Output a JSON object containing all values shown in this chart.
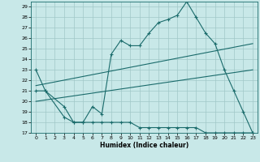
{
  "xlabel": "Humidex (Indice chaleur)",
  "xlim": [
    -0.5,
    23.5
  ],
  "ylim": [
    17,
    29.5
  ],
  "yticks": [
    17,
    18,
    19,
    20,
    21,
    22,
    23,
    24,
    25,
    26,
    27,
    28,
    29
  ],
  "xticks": [
    0,
    1,
    2,
    3,
    4,
    5,
    6,
    7,
    8,
    9,
    10,
    11,
    12,
    13,
    14,
    15,
    16,
    17,
    18,
    19,
    20,
    21,
    22,
    23
  ],
  "bg_color": "#c8e8e8",
  "grid_color": "#a0c8c8",
  "line_color": "#1a6b6b",
  "line1_x": [
    0,
    1,
    3,
    4,
    5,
    6,
    7,
    8,
    9,
    10,
    11,
    12,
    13,
    14,
    15,
    16,
    17,
    18,
    19,
    20,
    21,
    22,
    23
  ],
  "line1_y": [
    23,
    21,
    18.5,
    18,
    18,
    19.5,
    18.8,
    24.5,
    25.8,
    25.3,
    25.3,
    26.5,
    27.5,
    27.8,
    28.2,
    29.5,
    28,
    26.5,
    25.5,
    23,
    21,
    19,
    17
  ],
  "line2_x": [
    0,
    1,
    3,
    4,
    5,
    6,
    7,
    8,
    9,
    10,
    11,
    12,
    13,
    14,
    15,
    16,
    17,
    18,
    19,
    20,
    21,
    22,
    23
  ],
  "line2_y": [
    21,
    21,
    19.5,
    18,
    18,
    18,
    18,
    18,
    18,
    18,
    17.5,
    17.5,
    17.5,
    17.5,
    17.5,
    17.5,
    17.5,
    17,
    17,
    17,
    17,
    17,
    17
  ],
  "line3_x": [
    0,
    23
  ],
  "line3_y": [
    21.5,
    25.5
  ],
  "line4_x": [
    0,
    23
  ],
  "line4_y": [
    20.0,
    23.0
  ]
}
